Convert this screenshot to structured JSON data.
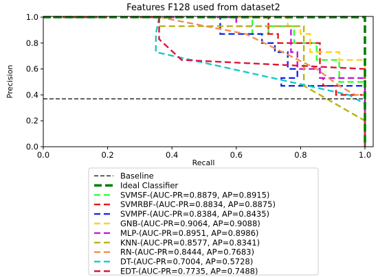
{
  "chart_data": {
    "type": "line",
    "title": "Features F128 used from dataset2",
    "xlabel": "Recall",
    "ylabel": "Precision",
    "xlim": [
      0.0,
      1.0
    ],
    "ylim": [
      0.0,
      1.0
    ],
    "xticks": [
      "0.0",
      "0.2",
      "0.4",
      "0.6",
      "0.8",
      "1.0"
    ],
    "yticks": [
      "0.0",
      "0.2",
      "0.4",
      "0.6",
      "0.8",
      "1.0"
    ],
    "grid": false,
    "legend_position": "below",
    "series": [
      {
        "name": "Baseline",
        "color": "#000000",
        "style": "dashed",
        "points": [
          [
            0.0,
            0.37
          ],
          [
            1.0,
            0.37
          ]
        ]
      },
      {
        "name": "Ideal Classifier",
        "color": "#007f00",
        "style": "dashed-thick",
        "points": [
          [
            0.0,
            1.0
          ],
          [
            1.0,
            1.0
          ],
          [
            1.0,
            0.0
          ]
        ]
      },
      {
        "name": "SVMSF-(AUC-PR=0.8879, AP=0.8915)",
        "color": "#33ff33",
        "style": "dashed",
        "points": [
          [
            0.0,
            1.0
          ],
          [
            0.65,
            1.0
          ],
          [
            0.65,
            0.87
          ],
          [
            0.7,
            0.87
          ],
          [
            0.7,
            0.93
          ],
          [
            0.78,
            0.93
          ],
          [
            0.78,
            0.8
          ],
          [
            0.85,
            0.8
          ],
          [
            0.85,
            0.67
          ],
          [
            0.92,
            0.67
          ],
          [
            0.92,
            0.5
          ],
          [
            1.0,
            0.5
          ],
          [
            1.0,
            0.0
          ]
        ]
      },
      {
        "name": "SVMRBF-(AUC-PR=0.8834, AP=0.8875)",
        "color": "#e8141c",
        "style": "dashed",
        "points": [
          [
            0.0,
            1.0
          ],
          [
            0.7,
            1.0
          ],
          [
            0.7,
            0.87
          ],
          [
            0.73,
            0.87
          ],
          [
            0.73,
            0.8
          ],
          [
            0.86,
            0.8
          ],
          [
            0.86,
            0.53
          ],
          [
            0.87,
            0.53
          ],
          [
            0.87,
            0.47
          ],
          [
            0.91,
            0.47
          ],
          [
            0.91,
            0.4
          ],
          [
            1.0,
            0.4
          ],
          [
            1.0,
            0.0
          ]
        ]
      },
      {
        "name": "SVMPF-(AUC-PR=0.8384, AP=0.8435)",
        "color": "#1428e6",
        "style": "dashed",
        "points": [
          [
            0.0,
            1.0
          ],
          [
            0.55,
            1.0
          ],
          [
            0.55,
            0.87
          ],
          [
            0.68,
            0.87
          ],
          [
            0.68,
            0.8
          ],
          [
            0.72,
            0.8
          ],
          [
            0.72,
            0.73
          ],
          [
            0.76,
            0.73
          ],
          [
            0.76,
            0.6
          ],
          [
            0.79,
            0.6
          ],
          [
            0.79,
            0.53
          ],
          [
            0.74,
            0.53
          ],
          [
            0.74,
            0.47
          ],
          [
            1.0,
            0.47
          ],
          [
            1.0,
            0.0
          ]
        ]
      },
      {
        "name": "GNB-(AUC-PR=0.9064, AP=0.9088)",
        "color": "#ffd21e",
        "style": "dashed",
        "points": [
          [
            0.0,
            1.0
          ],
          [
            0.76,
            1.0
          ],
          [
            0.76,
            0.93
          ],
          [
            0.8,
            0.93
          ],
          [
            0.8,
            0.87
          ],
          [
            0.83,
            0.87
          ],
          [
            0.83,
            0.73
          ],
          [
            0.92,
            0.73
          ],
          [
            0.92,
            0.67
          ],
          [
            1.0,
            0.67
          ],
          [
            1.0,
            0.0
          ]
        ]
      },
      {
        "name": "MLP-(AUC-PR=0.8951, AP=0.8986)",
        "color": "#c814d2",
        "style": "dashed",
        "points": [
          [
            0.0,
            1.0
          ],
          [
            0.6,
            1.0
          ],
          [
            0.6,
            0.93
          ],
          [
            0.77,
            0.93
          ],
          [
            0.77,
            0.73
          ],
          [
            0.79,
            0.73
          ],
          [
            0.79,
            0.6
          ],
          [
            0.86,
            0.6
          ],
          [
            0.86,
            0.53
          ],
          [
            1.0,
            0.53
          ],
          [
            1.0,
            0.0
          ]
        ]
      },
      {
        "name": "KNN-(AUC-PR=0.8577, AP=0.8341)",
        "color": "#b4b414",
        "style": "dashed",
        "points": [
          [
            0.0,
            1.0
          ],
          [
            0.36,
            1.0
          ],
          [
            0.36,
            0.93
          ],
          [
            0.81,
            0.93
          ],
          [
            0.81,
            0.47
          ],
          [
            0.86,
            0.4
          ],
          [
            1.0,
            0.2
          ]
        ]
      },
      {
        "name": "RN-(AUC-PR=0.8444, AP=0.7683)",
        "color": "#f48c50",
        "style": "dashed",
        "points": [
          [
            0.0,
            1.0
          ],
          [
            0.36,
            1.0
          ],
          [
            0.63,
            0.87
          ],
          [
            0.85,
            0.6
          ],
          [
            0.92,
            0.47
          ],
          [
            0.97,
            0.4
          ],
          [
            1.0,
            0.4
          ],
          [
            1.0,
            0.0
          ]
        ]
      },
      {
        "name": "DT-(AUC-PR=0.7004, AP=0.5728)",
        "color": "#14c8c8",
        "style": "dashed",
        "points": [
          [
            0.0,
            1.0
          ],
          [
            0.36,
            1.0
          ],
          [
            0.35,
            0.87
          ],
          [
            0.35,
            0.73
          ],
          [
            0.95,
            0.4
          ],
          [
            1.0,
            0.33
          ],
          [
            1.0,
            0.0
          ]
        ]
      },
      {
        "name": "EDT-(AUC-PR=0.7735, AP=0.7488)",
        "color": "#dc143c",
        "style": "dashed",
        "points": [
          [
            0.0,
            1.0
          ],
          [
            0.36,
            1.0
          ],
          [
            0.36,
            0.83
          ],
          [
            0.43,
            0.67
          ],
          [
            1.0,
            0.6
          ],
          [
            1.0,
            0.0
          ]
        ]
      }
    ]
  }
}
